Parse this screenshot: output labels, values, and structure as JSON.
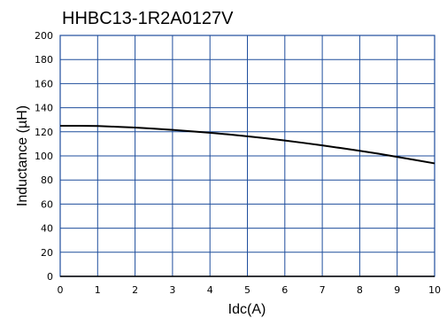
{
  "chart_data": {
    "type": "line",
    "title": "HHBC13-1R2A0127V",
    "xlabel": "Idc(A)",
    "ylabel": "Inductance (µH)",
    "xlim": [
      0,
      10
    ],
    "ylim": [
      0,
      200
    ],
    "x_ticks": [
      "0",
      "1",
      "2",
      "3",
      "4",
      "5",
      "6",
      "7",
      "8",
      "9",
      "10"
    ],
    "y_ticks": [
      "0",
      "20",
      "40",
      "60",
      "80",
      "100",
      "120",
      "140",
      "160",
      "180",
      "200"
    ],
    "grid": true,
    "colors": {
      "grid": "#1f4e9c",
      "line": "#000000",
      "axis": "#000000"
    },
    "series": [
      {
        "x": [
          0,
          0.5,
          1,
          1.5,
          2,
          2.5,
          3,
          3.5,
          4,
          4.5,
          5,
          5.5,
          6,
          6.5,
          7,
          7.5,
          8,
          8.5,
          9,
          9.5,
          10
        ],
        "values": [
          125,
          125,
          124.8,
          124.2,
          123.5,
          122.6,
          121.6,
          120.4,
          119.2,
          117.8,
          116.3,
          114.6,
          112.8,
          110.8,
          108.7,
          106.5,
          104.2,
          101.8,
          99.2,
          96.5,
          93.8
        ]
      }
    ]
  }
}
